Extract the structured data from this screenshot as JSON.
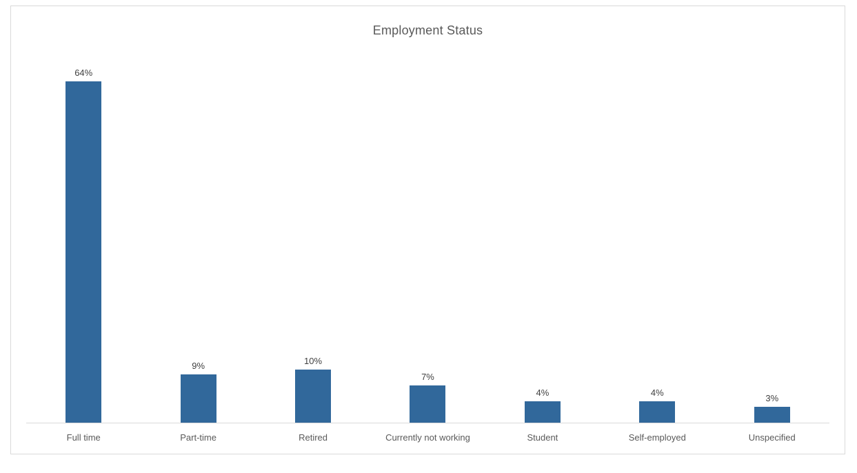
{
  "chart_data": {
    "type": "bar",
    "title": "Employment Status",
    "categories": [
      "Full time",
      "Part-time",
      "Retired",
      "Currently not working",
      "Student",
      "Self-employed",
      "Unspecified"
    ],
    "values": [
      64,
      9,
      10,
      7,
      4,
      4,
      3
    ],
    "value_labels": [
      "64%",
      "9%",
      "10%",
      "7%",
      "4%",
      "4%",
      "3%"
    ],
    "xlabel": "",
    "ylabel": "",
    "ylim": [
      0,
      67
    ],
    "grid": false,
    "legend": false,
    "data_labels_position": "outside-end",
    "colors": {
      "bar_fill": "#31689B",
      "title_text": "#595959",
      "value_label_text": "#404040",
      "category_label_text": "#595959",
      "axis_line": "#D9D9D9",
      "chart_border": "#D9D9D9",
      "background": "#FFFFFF"
    }
  }
}
